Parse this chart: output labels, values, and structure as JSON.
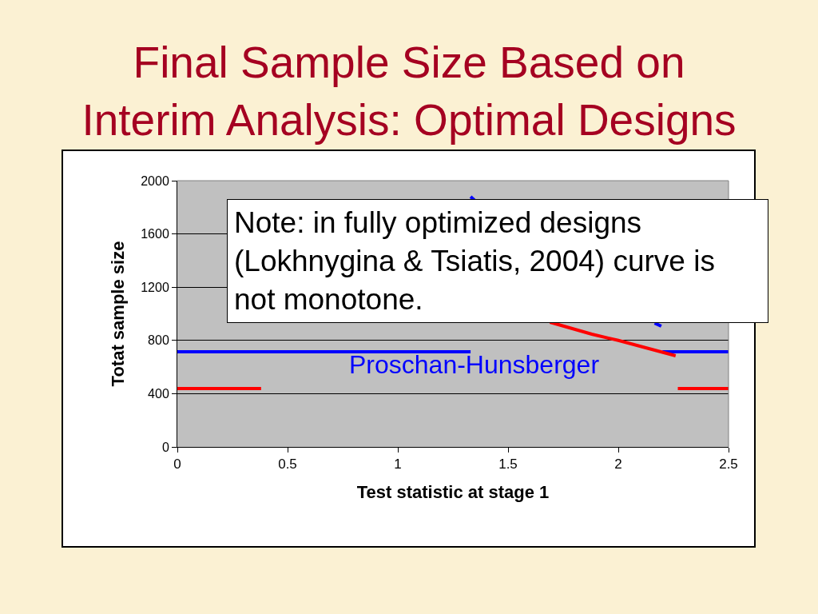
{
  "chart_data": {
    "type": "line",
    "title": "Final Sample Size Based on\nInterim Analysis: Optimal Designs",
    "xlabel": "Test statistic at stage 1",
    "ylabel": "Totat sample size",
    "xlim": [
      0,
      2.5
    ],
    "xticks": [
      0,
      0.5,
      1,
      1.5,
      2,
      2.5
    ],
    "ylim": [
      0,
      2000
    ],
    "yticks": [
      0,
      400,
      800,
      1200,
      1600,
      2000
    ],
    "grid": "y",
    "legend": false,
    "marker": "none",
    "line_style": "solid",
    "series": [
      {
        "name": "Proschan-Hunsberger",
        "color": "#0000ff",
        "x": [
          0,
          1.33
        ],
        "values": [
          715,
          715
        ]
      },
      {
        "color": "#0000ff",
        "x": [
          1.33,
          1.35
        ],
        "values": [
          1880,
          1850
        ]
      },
      {
        "color": "#0000ff",
        "x": [
          2.165,
          2.195
        ],
        "values": [
          930,
          907
        ]
      },
      {
        "color": "#0000ff",
        "x": [
          2.2,
          2.5
        ],
        "values": [
          715,
          715
        ]
      },
      {
        "color": "#ff0000",
        "x": [
          0,
          0.38
        ],
        "values": [
          438,
          438
        ]
      },
      {
        "color": "#ff0000",
        "x": [
          1.69,
          1.88,
          2.0,
          2.26
        ],
        "values": [
          937,
          847,
          800,
          685
        ]
      },
      {
        "color": "#ff0000",
        "x": [
          2.27,
          2.5
        ],
        "values": [
          438,
          438
        ]
      }
    ],
    "annotations": [
      "Note: in fully optimized designs\n(Lokhnygina & Tsiatis, 2004) curve is\nnot monotone."
    ]
  }
}
